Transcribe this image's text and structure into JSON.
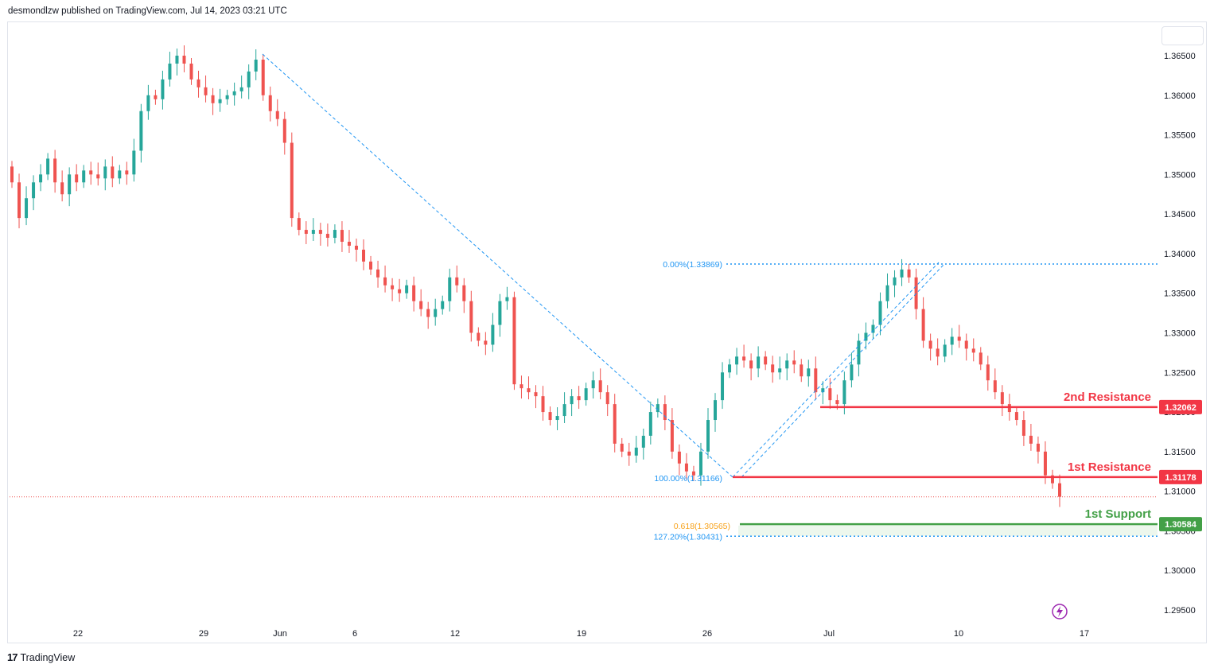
{
  "header": {
    "published_by": "desmondlzw published on TradingView.com, Jul 14, 2023 03:21 UTC"
  },
  "footer": {
    "brand": "TradingView",
    "logo_icon": "tradingview-logo-icon"
  },
  "colors": {
    "bull": "#26a69a",
    "bear": "#ef5350",
    "fib": "#2196f3",
    "resistance": "#f23645",
    "support": "#43a047",
    "golden": "#f7a21b",
    "axis_text": "#131722",
    "grid": "#e0e3eb"
  },
  "chart_data": {
    "type": "candlestick",
    "symbol_context": "GBP/USD style FX pair, 4H candles",
    "y_axis": {
      "ticks": [
        "1.36500",
        "1.36000",
        "1.35500",
        "1.35000",
        "1.34500",
        "1.34000",
        "1.33500",
        "1.33000",
        "1.32500",
        "1.32000",
        "1.31500",
        "1.31000",
        "1.30500",
        "1.30000",
        "1.29500"
      ],
      "range": [
        1.2925,
        1.368
      ]
    },
    "x_axis": {
      "ticks": [
        "22",
        "29",
        "Jun",
        "6",
        "12",
        "19",
        "26",
        "Jul",
        "10",
        "17"
      ]
    },
    "levels": [
      {
        "name": "2nd Resistance",
        "value": 1.32062,
        "label": "1.32062",
        "kind": "resistance"
      },
      {
        "name": "1st Resistance",
        "value": 1.31178,
        "label": "1.31178",
        "kind": "resistance"
      },
      {
        "name": "1st Support",
        "value": 1.30584,
        "label": "1.30584",
        "kind": "support"
      }
    ],
    "fib_levels": [
      {
        "label": "0.00%(1.33869)",
        "value": 1.33869
      },
      {
        "label": "100.00%(1.31166)",
        "value": 1.31166
      },
      {
        "label": "0.618(1.30565)",
        "value": 1.30565
      },
      {
        "label": "127.20%(1.30431)",
        "value": 1.30431
      }
    ],
    "current_price_line": 1.30928,
    "close_series": [
      1.349,
      1.3445,
      1.347,
      1.349,
      1.35,
      1.352,
      1.349,
      1.3475,
      1.35,
      1.349,
      1.3505,
      1.35,
      1.3495,
      1.351,
      1.3495,
      1.3505,
      1.35,
      1.353,
      1.358,
      1.36,
      1.3595,
      1.362,
      1.364,
      1.365,
      1.364,
      1.362,
      1.361,
      1.36,
      1.359,
      1.3595,
      1.36,
      1.3605,
      1.361,
      1.363,
      1.3645,
      1.36,
      1.358,
      1.357,
      1.354,
      1.3445,
      1.343,
      1.3425,
      1.343,
      1.3425,
      1.342,
      1.343,
      1.3415,
      1.341,
      1.3405,
      1.339,
      1.338,
      1.337,
      1.336,
      1.3355,
      1.335,
      1.336,
      1.334,
      1.333,
      1.332,
      1.333,
      1.334,
      1.337,
      1.336,
      1.334,
      1.33,
      1.329,
      1.3285,
      1.331,
      1.334,
      1.3345,
      1.3235,
      1.323,
      1.3225,
      1.322,
      1.32,
      1.319,
      1.3195,
      1.321,
      1.322,
      1.3215,
      1.323,
      1.324,
      1.3225,
      1.321,
      1.316,
      1.315,
      1.3145,
      1.3155,
      1.317,
      1.32,
      1.321,
      1.319,
      1.315,
      1.3135,
      1.3125,
      1.312,
      1.315,
      1.319,
      1.3215,
      1.325,
      1.326,
      1.327,
      1.3265,
      1.3255,
      1.327,
      1.326,
      1.325,
      1.3255,
      1.3265,
      1.326,
      1.3245,
      1.3255,
      1.3225,
      1.323,
      1.3215,
      1.321,
      1.324,
      1.326,
      1.329,
      1.33,
      1.331,
      1.334,
      1.336,
      1.337,
      1.338,
      1.337,
      1.333,
      1.329,
      1.328,
      1.327,
      1.3285,
      1.3295,
      1.329,
      1.328,
      1.3275,
      1.326,
      1.324,
      1.3225,
      1.321,
      1.32,
      1.319,
      1.317,
      1.316,
      1.315,
      1.312,
      1.311,
      1.3093
    ]
  }
}
